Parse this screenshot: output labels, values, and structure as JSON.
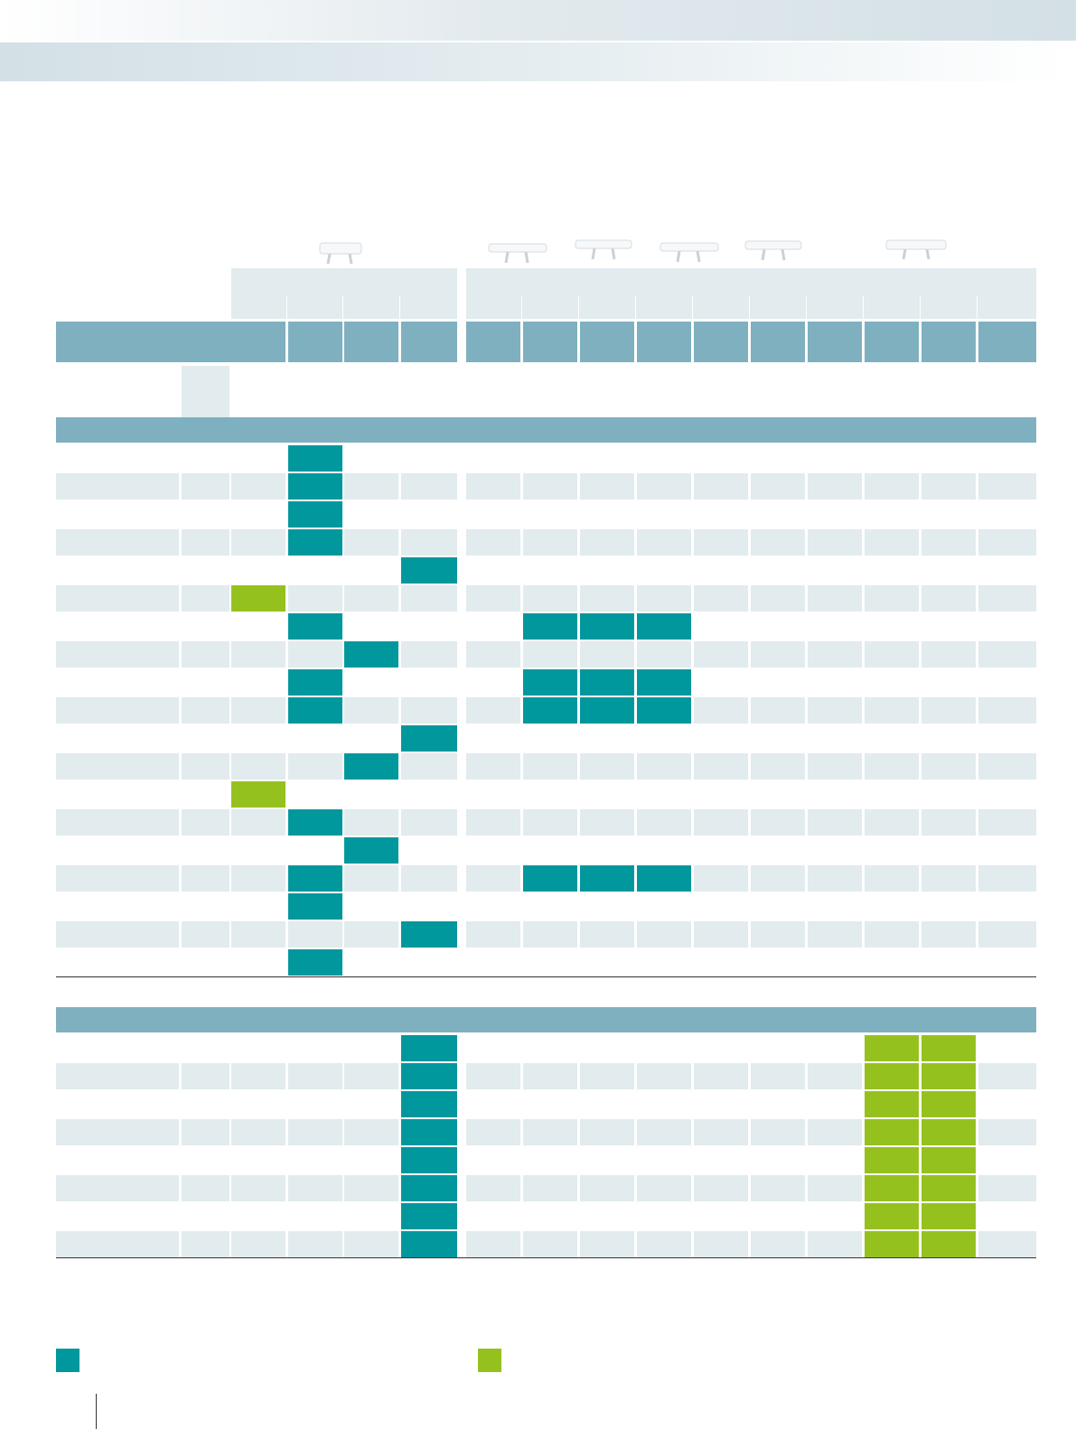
{
  "colors": {
    "header": "#7fb0bf",
    "light": "#e2ebee",
    "teal": "#00979d",
    "green": "#95c11f"
  },
  "devices": [
    "device-icon",
    "device-icon",
    "device-icon",
    "device-icon",
    "device-icon",
    "device-icon"
  ],
  "legend": [
    {
      "icon": "teal-legend-swatch"
    },
    {
      "icon": "green-legend-swatch"
    }
  ]
}
